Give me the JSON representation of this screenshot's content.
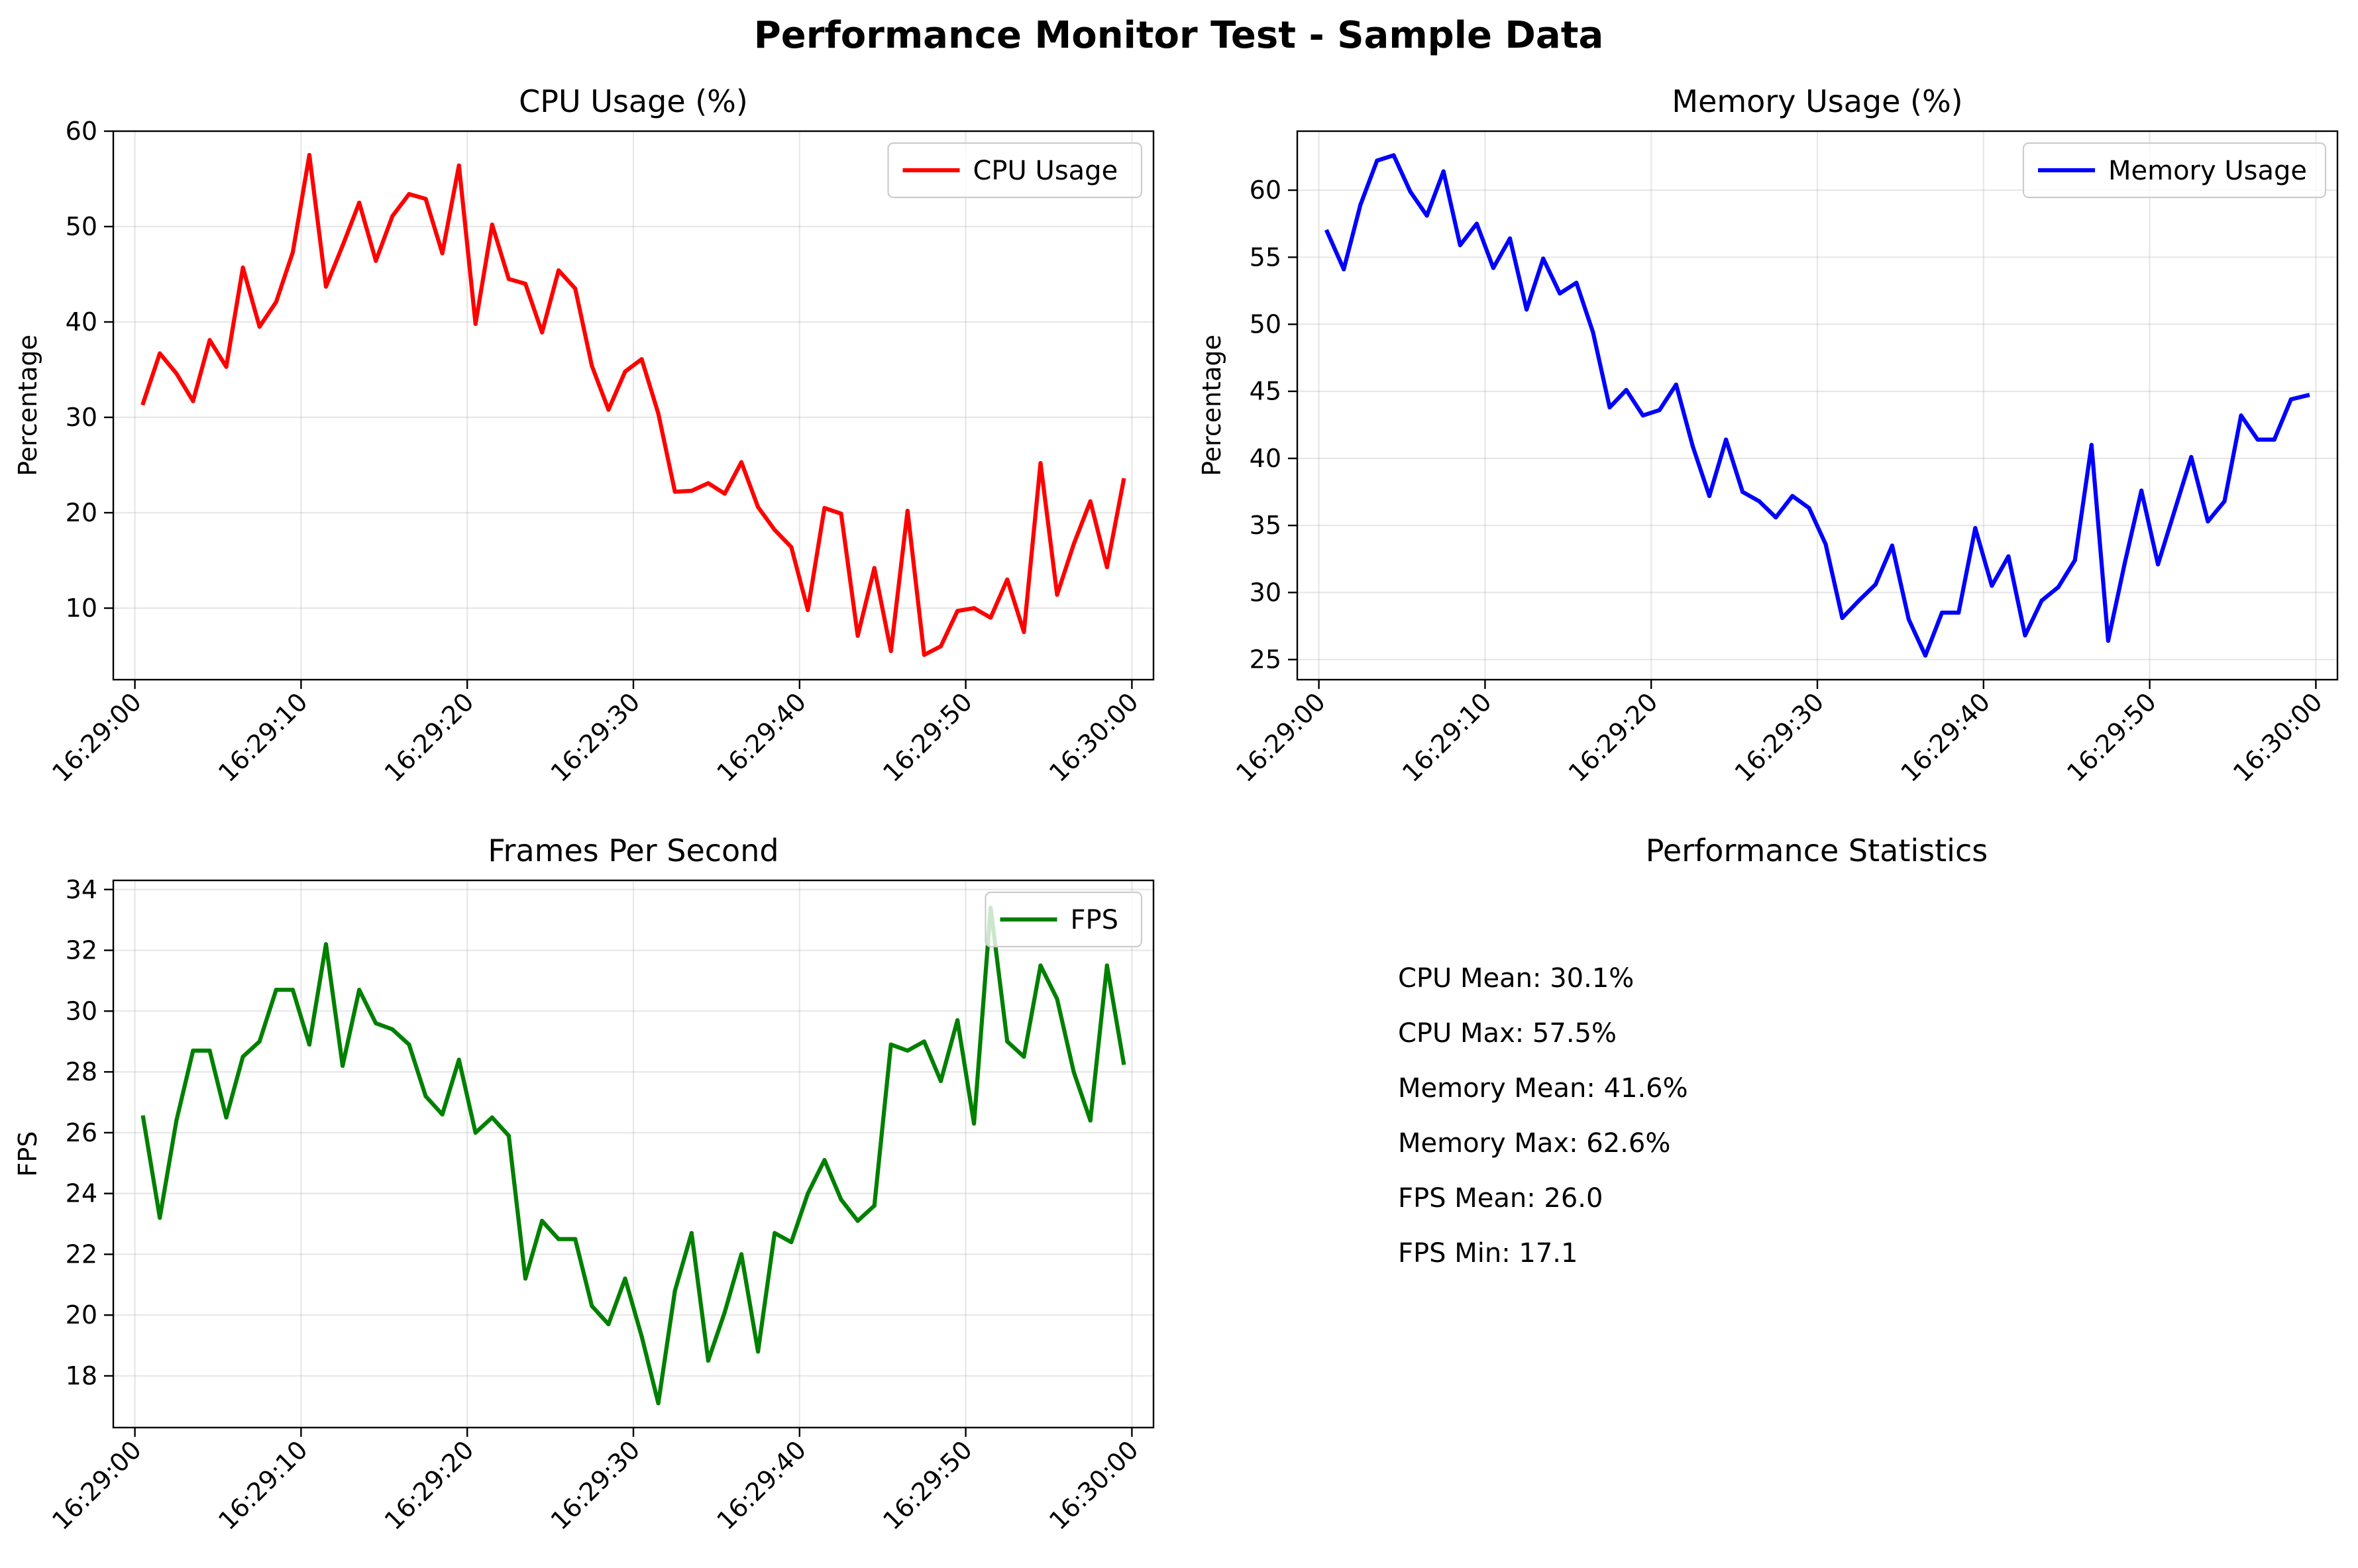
{
  "title": "Performance Monitor Test - Sample Data",
  "chart_data": [
    {
      "type": "line",
      "title": "CPU Usage (%)",
      "ylabel": "Percentage",
      "xlabel": "",
      "ylim": [
        2.5,
        60.0
      ],
      "yticks": [
        10,
        20,
        30,
        40,
        50,
        60
      ],
      "xlim": [
        "16:28:58.7",
        "16:30:01.3"
      ],
      "xticks": [
        "16:29:00",
        "16:29:10",
        "16:29:20",
        "16:29:30",
        "16:29:40",
        "16:29:50",
        "16:30:00"
      ],
      "x_seconds_after_16_29_00": [
        0.5,
        1.5,
        2.5,
        3.5,
        4.5,
        5.5,
        6.5,
        7.5,
        8.5,
        9.5,
        10.5,
        11.5,
        12.5,
        13.5,
        14.5,
        15.5,
        16.5,
        17.5,
        18.5,
        19.5,
        20.5,
        21.5,
        22.5,
        23.5,
        24.5,
        25.5,
        26.5,
        27.5,
        28.5,
        29.5,
        30.5,
        31.5,
        32.5,
        33.5,
        34.5,
        35.5,
        36.5,
        37.5,
        38.5,
        39.5,
        40.5,
        41.5,
        42.5,
        43.5,
        44.5,
        45.5,
        46.5,
        47.5,
        48.5,
        49.5,
        50.5,
        51.5,
        52.5,
        53.5,
        54.5,
        55.5,
        56.5,
        57.5,
        58.5,
        59.5
      ],
      "grid": true,
      "legend_position": "upper right",
      "series": [
        {
          "name": "CPU Usage",
          "color": "#ff0000",
          "values": [
            31.5,
            36.7,
            34.6,
            31.7,
            38.1,
            35.3,
            45.7,
            39.5,
            42.1,
            47.3,
            57.5,
            43.7,
            48.0,
            52.5,
            46.4,
            51.1,
            53.4,
            52.9,
            47.2,
            56.4,
            39.8,
            50.2,
            44.5,
            44.0,
            38.9,
            45.4,
            43.5,
            35.4,
            30.8,
            34.8,
            36.1,
            30.4,
            22.2,
            22.3,
            23.1,
            22.0,
            25.3,
            20.6,
            18.2,
            16.4,
            9.8,
            20.5,
            19.9,
            7.1,
            14.2,
            5.5,
            20.2,
            5.1,
            6.0,
            9.7,
            10.0,
            9.0,
            13.0,
            7.5,
            25.2,
            11.4,
            16.7,
            21.2,
            14.3,
            23.4
          ]
        }
      ]
    },
    {
      "type": "line",
      "title": "Memory Usage (%)",
      "ylabel": "Percentage",
      "xlabel": "",
      "ylim": [
        23.5,
        64.4
      ],
      "yticks": [
        25,
        30,
        35,
        40,
        45,
        50,
        55,
        60
      ],
      "xlim": [
        "16:28:58.7",
        "16:30:01.3"
      ],
      "xticks": [
        "16:29:00",
        "16:29:10",
        "16:29:20",
        "16:29:30",
        "16:29:40",
        "16:29:50",
        "16:30:00"
      ],
      "x_seconds_after_16_29_00": [
        0.5,
        1.5,
        2.5,
        3.5,
        4.5,
        5.5,
        6.5,
        7.5,
        8.5,
        9.5,
        10.5,
        11.5,
        12.5,
        13.5,
        14.5,
        15.5,
        16.5,
        17.5,
        18.5,
        19.5,
        20.5,
        21.5,
        22.5,
        23.5,
        24.5,
        25.5,
        26.5,
        27.5,
        28.5,
        29.5,
        30.5,
        31.5,
        32.5,
        33.5,
        34.5,
        35.5,
        36.5,
        37.5,
        38.5,
        39.5,
        40.5,
        41.5,
        42.5,
        43.5,
        44.5,
        45.5,
        46.5,
        47.5,
        48.5,
        49.5,
        50.5,
        51.5,
        52.5,
        53.5,
        54.5,
        55.5,
        56.5,
        57.5,
        58.5,
        59.5
      ],
      "grid": true,
      "legend_position": "upper right",
      "series": [
        {
          "name": "Memory Usage",
          "color": "#0000ff",
          "values": [
            56.9,
            54.1,
            58.9,
            62.2,
            62.6,
            59.9,
            58.1,
            61.4,
            55.9,
            57.5,
            54.2,
            56.4,
            51.1,
            54.9,
            52.3,
            53.1,
            49.4,
            43.8,
            45.1,
            43.2,
            43.6,
            45.5,
            40.9,
            37.2,
            41.4,
            37.5,
            36.8,
            35.6,
            37.2,
            36.3,
            33.6,
            28.1,
            29.4,
            30.6,
            33.5,
            28.0,
            25.3,
            28.5,
            28.5,
            34.8,
            30.5,
            32.7,
            26.8,
            29.4,
            30.4,
            32.4,
            41.0,
            26.4,
            32.2,
            37.6,
            32.1,
            36.1,
            40.1,
            35.3,
            36.8,
            43.2,
            41.4,
            41.4,
            44.4,
            44.7
          ]
        }
      ]
    },
    {
      "type": "line",
      "title": "Frames Per Second",
      "ylabel": "FPS",
      "xlabel": "",
      "ylim": [
        16.3,
        34.3
      ],
      "yticks": [
        18,
        20,
        22,
        24,
        26,
        28,
        30,
        32,
        34
      ],
      "xlim": [
        "16:28:58.7",
        "16:30:01.3"
      ],
      "xticks": [
        "16:29:00",
        "16:29:10",
        "16:29:20",
        "16:29:30",
        "16:29:40",
        "16:29:50",
        "16:30:00"
      ],
      "x_seconds_after_16_29_00": [
        0.5,
        1.5,
        2.5,
        3.5,
        4.5,
        5.5,
        6.5,
        7.5,
        8.5,
        9.5,
        10.5,
        11.5,
        12.5,
        13.5,
        14.5,
        15.5,
        16.5,
        17.5,
        18.5,
        19.5,
        20.5,
        21.5,
        22.5,
        23.5,
        24.5,
        25.5,
        26.5,
        27.5,
        28.5,
        29.5,
        30.5,
        31.5,
        32.5,
        33.5,
        34.5,
        35.5,
        36.5,
        37.5,
        38.5,
        39.5,
        40.5,
        41.5,
        42.5,
        43.5,
        44.5,
        45.5,
        46.5,
        47.5,
        48.5,
        49.5,
        50.5,
        51.5,
        52.5,
        53.5,
        54.5,
        55.5,
        56.5,
        57.5,
        58.5,
        59.5
      ],
      "grid": true,
      "legend_position": "upper right",
      "series": [
        {
          "name": "FPS",
          "color": "#008000",
          "values": [
            26.5,
            23.2,
            26.4,
            28.7,
            28.7,
            26.5,
            28.5,
            29.0,
            30.7,
            30.7,
            28.9,
            32.2,
            28.2,
            30.7,
            29.6,
            29.4,
            28.9,
            27.2,
            26.6,
            28.4,
            26.0,
            26.5,
            25.9,
            21.2,
            23.1,
            22.5,
            22.5,
            20.3,
            19.7,
            21.2,
            19.3,
            17.1,
            20.8,
            22.7,
            18.5,
            20.1,
            22.0,
            18.8,
            22.7,
            22.4,
            24.0,
            25.1,
            23.8,
            23.1,
            23.6,
            28.9,
            28.7,
            29.0,
            27.7,
            29.7,
            26.3,
            33.4,
            29.0,
            28.5,
            31.5,
            30.4,
            28.0,
            26.4,
            31.5,
            28.3
          ]
        }
      ]
    }
  ],
  "stats_panel": {
    "title": "Performance Statistics",
    "lines": [
      "CPU Mean: 30.1%",
      "CPU Max: 57.5%",
      "Memory Mean: 41.6%",
      "Memory Max: 62.6%",
      "FPS Mean: 26.0",
      "FPS Min: 17.1"
    ]
  }
}
